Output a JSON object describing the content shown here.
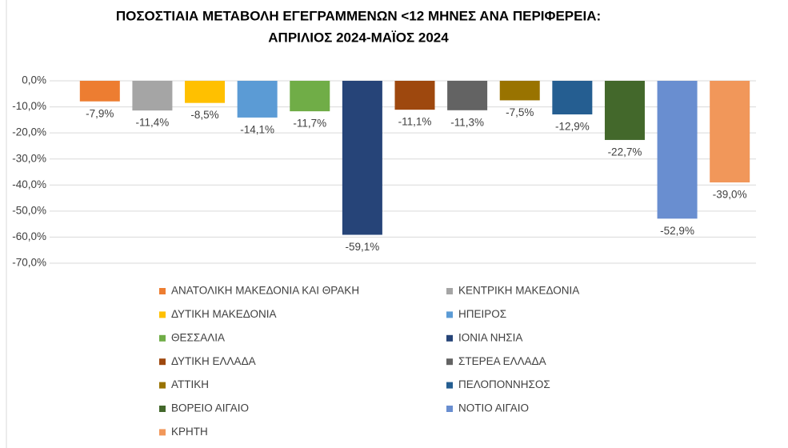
{
  "chart_data": {
    "type": "bar",
    "title": [
      "ΠΟΣΟΣΤΙΑΙΑ ΜΕΤΑΒΟΛΗ ΕΓΕΓΡΑΜΜΕΝΩΝ <12 ΜΗΝΕΣ ΑΝΑ ΠΕΡΙΦΕΡΕΙΑ:",
      "ΑΠΡΙΛΙΟΣ 2024-ΜΑΪΟΣ 2024"
    ],
    "series": [
      {
        "name": "ΑΝΑΤΟΛΙΚΗ ΜΑΚΕΔΟΝΙΑ ΚΑΙ ΘΡΑΚΗ",
        "color": "#ED7D31",
        "values": [
          -7.9
        ],
        "value_labels": [
          "-7,9%"
        ]
      },
      {
        "name": "ΚΕΝΤΡΙΚΗ ΜΑΚΕΔΟΝΙΑ",
        "color": "#A5A5A5",
        "values": [
          -11.4
        ],
        "value_labels": [
          "-11,4%"
        ]
      },
      {
        "name": "ΔΥΤΙΚΗ ΜΑΚΕΔΟΝΙΑ",
        "color": "#FFC000",
        "values": [
          -8.5
        ],
        "value_labels": [
          "-8,5%"
        ]
      },
      {
        "name": "ΗΠΕΙΡΟΣ",
        "color": "#5B9BD5",
        "values": [
          -14.1
        ],
        "value_labels": [
          "-14,1%"
        ]
      },
      {
        "name": "ΘΕΣΣΑΛΙΑ",
        "color": "#70AD47",
        "values": [
          -11.7
        ],
        "value_labels": [
          "-11,7%"
        ]
      },
      {
        "name": "ΙΟΝΙΑ ΝΗΣΙΑ",
        "color": "#264478",
        "values": [
          -59.1
        ],
        "value_labels": [
          "-59,1%"
        ]
      },
      {
        "name": "ΔΥΤΙΚΗ ΕΛΛΑΔΑ",
        "color": "#9E480E",
        "values": [
          -11.1
        ],
        "value_labels": [
          "-11,1%"
        ]
      },
      {
        "name": "ΣΤΕΡΕΑ ΕΛΛΑΔΑ",
        "color": "#636363",
        "values": [
          -11.3
        ],
        "value_labels": [
          "-11,3%"
        ]
      },
      {
        "name": "ΑΤΤΙΚΗ",
        "color": "#997300",
        "values": [
          -7.5
        ],
        "value_labels": [
          "-7,5%"
        ]
      },
      {
        "name": "ΠΕΛΟΠΟΝΝΗΣΟΣ",
        "color": "#255E91",
        "values": [
          -12.9
        ],
        "value_labels": [
          "-12,9%"
        ]
      },
      {
        "name": "ΒΟΡΕΙΟ ΑΙΓΑΙΟ",
        "color": "#43682B",
        "values": [
          -22.7
        ],
        "value_labels": [
          "-22,7%"
        ]
      },
      {
        "name": "ΝΟΤΙΟ ΑΙΓΑΙΟ",
        "color": "#698ED0",
        "values": [
          -52.9
        ],
        "value_labels": [
          "-52,9%"
        ]
      },
      {
        "name": "ΚΡΗΤΗ",
        "color": "#F1975A",
        "values": [
          -39.0
        ],
        "value_labels": [
          "-39,0%"
        ]
      }
    ],
    "ylim": [
      -70,
      0
    ],
    "yticks": [
      {
        "value": 0,
        "label": "0,0%"
      },
      {
        "value": -10,
        "label": "-10,0%"
      },
      {
        "value": -20,
        "label": "-20,0%"
      },
      {
        "value": -30,
        "label": "-30,0%"
      },
      {
        "value": -40,
        "label": "-40,0%"
      },
      {
        "value": -50,
        "label": "-50,0%"
      },
      {
        "value": -60,
        "label": "-60,0%"
      },
      {
        "value": -70,
        "label": "-70,0%"
      }
    ],
    "grid": true,
    "legend": "bottom"
  }
}
